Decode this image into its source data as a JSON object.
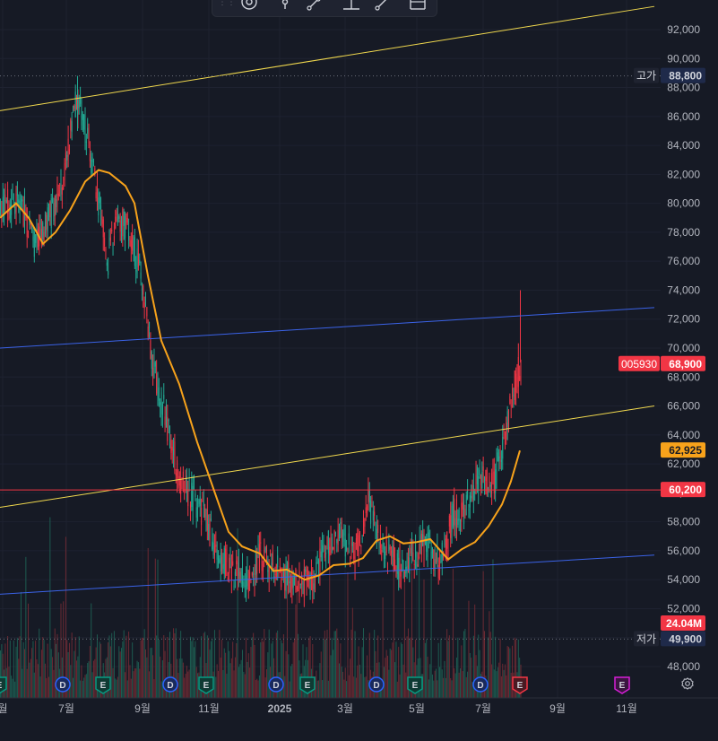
{
  "toolbar": {
    "icons": [
      "grip-icon",
      "magnet-icon",
      "marker-icon",
      "trend-line-icon",
      "horizontal-ray-icon",
      "line-tool-icon",
      "measure-icon"
    ]
  },
  "chart_data": {
    "type": "candlestick",
    "ticker": "005930",
    "last_price_label": "68,900",
    "last_price": 68900,
    "ylim": [
      47000,
      95000
    ],
    "y_ticks": [
      {
        "v": 48000,
        "t": "48,000"
      },
      {
        "v": 50000,
        "t": "50,000"
      },
      {
        "v": 52000,
        "t": "52,000"
      },
      {
        "v": 54000,
        "t": "54,000"
      },
      {
        "v": 56000,
        "t": "56,000"
      },
      {
        "v": 58000,
        "t": "58,000"
      },
      {
        "v": 60000,
        "t": "60,000"
      },
      {
        "v": 62000,
        "t": "62,000"
      },
      {
        "v": 64000,
        "t": "64,000"
      },
      {
        "v": 66000,
        "t": "66,000"
      },
      {
        "v": 68000,
        "t": "68,000"
      },
      {
        "v": 70000,
        "t": "70,000"
      },
      {
        "v": 72000,
        "t": "72,000"
      },
      {
        "v": 74000,
        "t": "74,000"
      },
      {
        "v": 76000,
        "t": "76,000"
      },
      {
        "v": 78000,
        "t": "78,000"
      },
      {
        "v": 80000,
        "t": "80,000"
      },
      {
        "v": 82000,
        "t": "82,000"
      },
      {
        "v": 84000,
        "t": "84,000"
      },
      {
        "v": 86000,
        "t": "86,000"
      },
      {
        "v": 88000,
        "t": "88,000"
      },
      {
        "v": 90000,
        "t": "90,000"
      },
      {
        "v": 92000,
        "t": "92,000"
      }
    ],
    "x_ticks": [
      {
        "label": "월",
        "bold": false
      },
      {
        "label": "7월",
        "bold": false
      },
      {
        "label": "9월",
        "bold": false
      },
      {
        "label": "11월",
        "bold": false
      },
      {
        "label": "2025",
        "bold": true
      },
      {
        "label": "3월",
        "bold": false
      },
      {
        "label": "5월",
        "bold": false
      },
      {
        "label": "7월",
        "bold": false
      },
      {
        "label": "9월",
        "bold": false
      },
      {
        "label": "11월",
        "bold": false
      }
    ],
    "price_tags": {
      "high": {
        "label": "고가",
        "value": 88800,
        "text": "88,800"
      },
      "low": {
        "label": "저가",
        "value": 49900,
        "text": "49,900"
      },
      "ma": {
        "value": 62925,
        "text": "62,925",
        "color": "#f7a21b"
      },
      "hline": {
        "value": 60200,
        "text": "60,200",
        "color": "#f23645"
      },
      "volume": {
        "text": "24.04M",
        "color": "#f23645"
      }
    },
    "horizontal_line": {
      "value": 60200,
      "color": "#f23645"
    },
    "trendlines": [
      {
        "color": "#f0d84e",
        "from": {
          "t": 0,
          "v": 86400
        },
        "to": {
          "t": 730,
          "v": 93600
        }
      },
      {
        "color": "#f0d84e",
        "from": {
          "t": 0,
          "v": 59000
        },
        "to": {
          "t": 730,
          "v": 66000
        }
      },
      {
        "color": "#3b63e8",
        "from": {
          "t": 0,
          "v": 70000
        },
        "to": {
          "t": 730,
          "v": 72800
        }
      },
      {
        "color": "#3b63e8",
        "from": {
          "t": 0,
          "v": 53000
        },
        "to": {
          "t": 730,
          "v": 55700
        }
      }
    ],
    "moving_average": {
      "color": "#f7a21b",
      "points": [
        [
          0,
          79000
        ],
        [
          18,
          80000
        ],
        [
          32,
          79000
        ],
        [
          48,
          77200
        ],
        [
          62,
          78000
        ],
        [
          78,
          79500
        ],
        [
          95,
          81500
        ],
        [
          110,
          82300
        ],
        [
          122,
          82100
        ],
        [
          140,
          81200
        ],
        [
          150,
          80000
        ],
        [
          165,
          75000
        ],
        [
          180,
          70500
        ],
        [
          200,
          67500
        ],
        [
          220,
          63500
        ],
        [
          238,
          60300
        ],
        [
          255,
          57300
        ],
        [
          270,
          56300
        ],
        [
          290,
          55800
        ],
        [
          305,
          54600
        ],
        [
          320,
          54700
        ],
        [
          340,
          54000
        ],
        [
          356,
          54300
        ],
        [
          372,
          55000
        ],
        [
          390,
          55100
        ],
        [
          405,
          55500
        ],
        [
          420,
          56700
        ],
        [
          435,
          57000
        ],
        [
          450,
          56500
        ],
        [
          465,
          56600
        ],
        [
          480,
          56800
        ],
        [
          500,
          55400
        ],
        [
          515,
          56100
        ],
        [
          530,
          56600
        ],
        [
          545,
          57700
        ],
        [
          560,
          59200
        ],
        [
          570,
          60800
        ],
        [
          580,
          62925
        ]
      ]
    },
    "anchors": [
      [
        0,
        79500
      ],
      [
        20,
        80500
      ],
      [
        38,
        77000
      ],
      [
        55,
        79000
      ],
      [
        70,
        81500
      ],
      [
        85,
        87500
      ],
      [
        95,
        85000
      ],
      [
        105,
        82000
      ],
      [
        120,
        76000
      ],
      [
        130,
        79000
      ],
      [
        145,
        78000
      ],
      [
        160,
        74000
      ],
      [
        170,
        69000
      ],
      [
        185,
        65000
      ],
      [
        200,
        61000
      ],
      [
        215,
        59500
      ],
      [
        230,
        58000
      ],
      [
        245,
        55500
      ],
      [
        260,
        54500
      ],
      [
        275,
        54000
      ],
      [
        290,
        55500
      ],
      [
        305,
        55000
      ],
      [
        320,
        54200
      ],
      [
        335,
        53600
      ],
      [
        350,
        54200
      ],
      [
        365,
        56200
      ],
      [
        380,
        57300
      ],
      [
        395,
        55300
      ],
      [
        410,
        59500
      ],
      [
        420,
        57500
      ],
      [
        432,
        55800
      ],
      [
        445,
        55000
      ],
      [
        460,
        55600
      ],
      [
        475,
        56500
      ],
      [
        490,
        55000
      ],
      [
        505,
        58500
      ],
      [
        520,
        59000
      ],
      [
        535,
        61500
      ],
      [
        550,
        60500
      ],
      [
        562,
        63500
      ],
      [
        572,
        67000
      ],
      [
        580,
        68900
      ]
    ],
    "events": [
      {
        "t": -5,
        "type": "E"
      },
      {
        "t": 70,
        "type": "D"
      },
      {
        "t": 115,
        "type": "E"
      },
      {
        "t": 190,
        "type": "D"
      },
      {
        "t": 230,
        "type": "E"
      },
      {
        "t": 308,
        "type": "D"
      },
      {
        "t": 343,
        "type": "E"
      },
      {
        "t": 420,
        "type": "D"
      },
      {
        "t": 463,
        "type": "E"
      },
      {
        "t": 536,
        "type": "D"
      },
      {
        "t": 580,
        "type": "E",
        "active": true
      },
      {
        "t": 694,
        "type": "E",
        "future": true
      }
    ],
    "colors": {
      "up": "#22ab94",
      "down": "#f23645",
      "grid": "#1e2230",
      "text": "#b2b5be",
      "bg": "#161a25"
    }
  }
}
